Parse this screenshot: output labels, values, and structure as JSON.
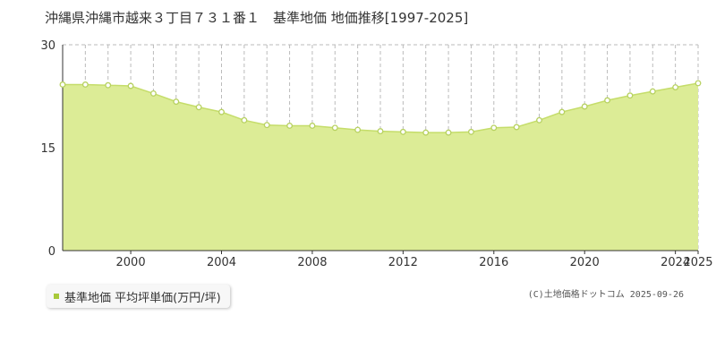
{
  "title": "沖縄県沖縄市越来３丁目７３１番１　基準地価 地価推移[1997-2025]",
  "legend": {
    "label": "基準地価 平均坪単価(万円/坪)"
  },
  "copyright": "(C)土地価格ドットコム 2025-09-26",
  "colors": {
    "area_fill": "#dcec96",
    "line": "#c5dd6a",
    "marker_stroke": "#b7d160",
    "grid": "#bbbbbb",
    "axis": "#333333"
  },
  "chart_data": {
    "type": "area",
    "title": "沖縄県沖縄市越来３丁目７３１番１　基準地価 地価推移[1997-2025]",
    "xlim": [
      1997,
      2025
    ],
    "ylim": [
      0,
      30
    ],
    "yticks": [
      0,
      15,
      30
    ],
    "xticks": [
      2000,
      2004,
      2008,
      2012,
      2016,
      2020,
      2024,
      2025
    ],
    "grid": true,
    "legend_position": "bottom-left",
    "series": [
      {
        "name": "基準地価 平均坪単価(万円/坪)",
        "x": [
          1997,
          1998,
          1999,
          2000,
          2001,
          2002,
          2003,
          2004,
          2005,
          2006,
          2007,
          2008,
          2009,
          2010,
          2011,
          2012,
          2013,
          2014,
          2015,
          2016,
          2017,
          2018,
          2019,
          2020,
          2021,
          2022,
          2023,
          2024,
          2025
        ],
        "y": [
          24.2,
          24.2,
          24.1,
          24.0,
          22.9,
          21.7,
          20.9,
          20.2,
          19.0,
          18.3,
          18.2,
          18.2,
          17.9,
          17.6,
          17.4,
          17.3,
          17.2,
          17.2,
          17.3,
          17.9,
          18.0,
          19.0,
          20.2,
          21.0,
          21.9,
          22.6,
          23.2,
          23.8,
          24.4
        ]
      }
    ]
  }
}
